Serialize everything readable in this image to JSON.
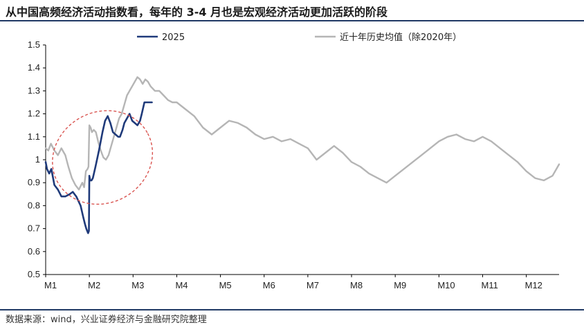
{
  "header": {
    "title": "从中国高频经济活动指数看，每年的 3-4 月也是宏观经济活动更加活跃的阶段"
  },
  "footer": {
    "source": "数据来源：wind，兴业证券经济与金融研究院整理"
  },
  "colors": {
    "series_2025": "#1f3a7a",
    "series_avg": "#b5b5b5",
    "ellipse": "#d9534f",
    "rule": "#1f3864"
  },
  "chart_data": {
    "type": "line",
    "title": "",
    "xlabel": "",
    "ylabel": "",
    "x_categories": [
      "M1",
      "M2",
      "M3",
      "M4",
      "M5",
      "M6",
      "M7",
      "M8",
      "M9",
      "M10",
      "M11",
      "M12"
    ],
    "x_unit": "month index (1 = M1)",
    "ylim": [
      0.5,
      1.5
    ],
    "yticks": [
      "0.5",
      "0.6",
      "0.7",
      "0.8",
      "0.9",
      "1",
      "1.1",
      "1.2",
      "1.3",
      "1.4",
      "1.5"
    ],
    "grid": false,
    "legend_position": "top",
    "series": [
      {
        "name": "2025",
        "x": [
          1.0,
          1.03,
          1.08,
          1.13,
          1.2,
          1.28,
          1.36,
          1.45,
          1.55,
          1.62,
          1.7,
          1.8,
          1.86,
          1.9,
          1.93,
          1.95,
          1.97,
          1.99,
          2.0,
          2.02,
          2.05,
          2.08,
          2.14,
          2.22,
          2.3,
          2.36,
          2.42,
          2.48,
          2.54,
          2.6,
          2.66,
          2.7,
          2.76,
          2.8,
          2.86,
          2.92,
          2.98,
          3.04,
          3.1,
          3.16,
          3.2,
          3.26,
          3.36,
          3.43
        ],
        "values": [
          0.99,
          0.96,
          0.94,
          0.96,
          0.89,
          0.87,
          0.84,
          0.84,
          0.85,
          0.86,
          0.84,
          0.8,
          0.75,
          0.72,
          0.7,
          0.69,
          0.68,
          0.69,
          0.93,
          0.91,
          0.91,
          0.92,
          0.97,
          1.04,
          1.12,
          1.17,
          1.19,
          1.16,
          1.12,
          1.11,
          1.1,
          1.1,
          1.13,
          1.16,
          1.18,
          1.2,
          1.17,
          1.16,
          1.15,
          1.17,
          1.2,
          1.25,
          1.25,
          1.25
        ]
      },
      {
        "name": "近十年历史均值（除2020年）",
        "x": [
          1.0,
          1.06,
          1.12,
          1.2,
          1.28,
          1.36,
          1.45,
          1.52,
          1.6,
          1.68,
          1.76,
          1.84,
          1.88,
          1.92,
          1.96,
          1.98,
          2.0,
          2.03,
          2.06,
          2.1,
          2.15,
          2.2,
          2.26,
          2.32,
          2.38,
          2.44,
          2.5,
          2.56,
          2.62,
          2.68,
          2.74,
          2.8,
          2.86,
          2.92,
          2.98,
          3.04,
          3.1,
          3.16,
          3.22,
          3.28,
          3.34,
          3.4,
          3.5,
          3.6,
          3.7,
          3.8,
          3.9,
          4.0,
          4.2,
          4.4,
          4.6,
          4.8,
          5.0,
          5.2,
          5.4,
          5.6,
          5.8,
          6.0,
          6.2,
          6.4,
          6.6,
          6.8,
          7.0,
          7.2,
          7.4,
          7.6,
          7.8,
          8.0,
          8.2,
          8.4,
          8.6,
          8.8,
          9.0,
          9.2,
          9.4,
          9.6,
          9.8,
          10.0,
          10.2,
          10.4,
          10.6,
          10.8,
          11.0,
          11.2,
          11.4,
          11.6,
          11.8,
          12.0,
          12.2,
          12.4,
          12.6,
          12.75
        ],
        "values": [
          1.05,
          1.04,
          1.07,
          1.04,
          1.02,
          1.05,
          1.02,
          0.97,
          0.92,
          0.89,
          0.87,
          0.9,
          0.88,
          0.95,
          0.96,
          0.97,
          1.15,
          1.14,
          1.12,
          1.13,
          1.12,
          1.08,
          1.04,
          1.01,
          1.0,
          1.02,
          1.06,
          1.1,
          1.14,
          1.18,
          1.2,
          1.24,
          1.28,
          1.3,
          1.32,
          1.34,
          1.36,
          1.35,
          1.33,
          1.35,
          1.34,
          1.32,
          1.3,
          1.3,
          1.28,
          1.26,
          1.25,
          1.25,
          1.22,
          1.19,
          1.14,
          1.11,
          1.14,
          1.17,
          1.16,
          1.14,
          1.11,
          1.09,
          1.1,
          1.08,
          1.09,
          1.07,
          1.05,
          1.0,
          1.03,
          1.06,
          1.03,
          0.99,
          0.97,
          0.94,
          0.92,
          0.9,
          0.93,
          0.96,
          0.99,
          1.02,
          1.05,
          1.08,
          1.1,
          1.11,
          1.09,
          1.08,
          1.1,
          1.08,
          1.05,
          1.02,
          0.99,
          0.95,
          0.92,
          0.91,
          0.93,
          0.98
        ]
      }
    ],
    "annotations": [
      {
        "type": "ellipse",
        "style": "dashed",
        "x_center": 2.3,
        "y_center": 1.01,
        "x_radius": 0.9,
        "y_radius": 0.36,
        "rotation_deg": 28
      }
    ]
  }
}
